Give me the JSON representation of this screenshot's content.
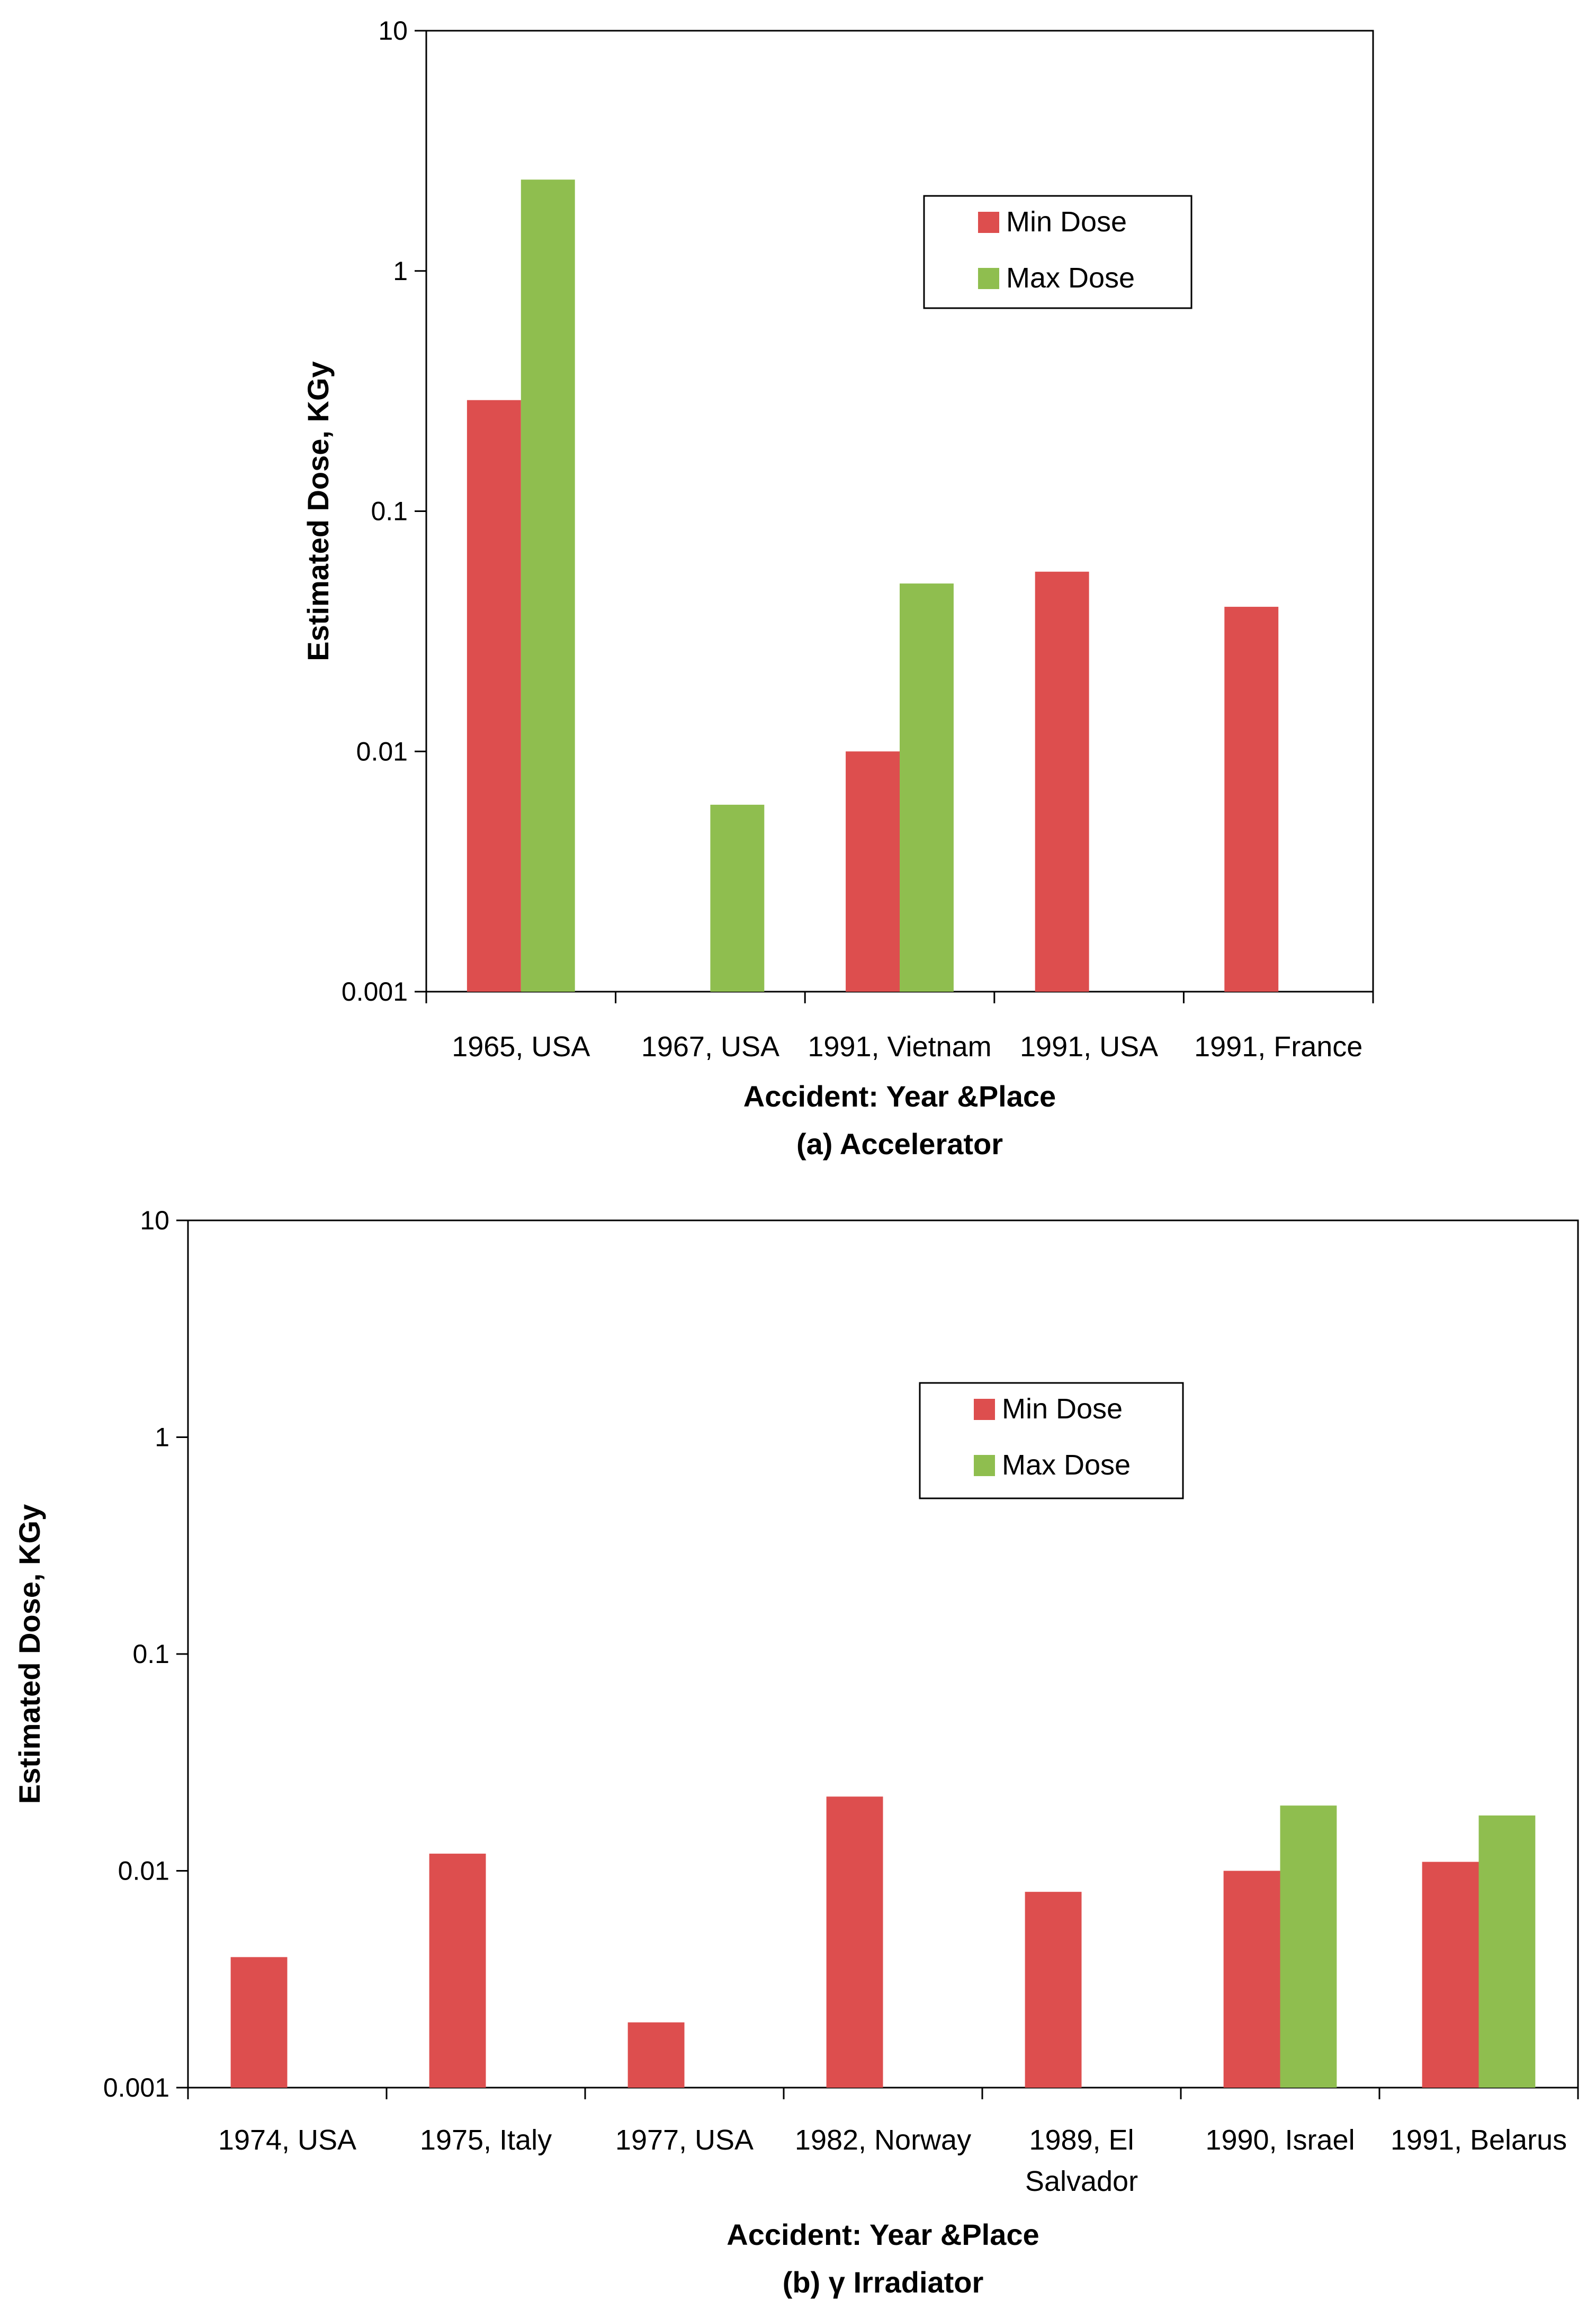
{
  "colors": {
    "min": "#dd4e4e",
    "max": "#8fbe4f",
    "axis": "#000000"
  },
  "chart_data": [
    {
      "type": "bar",
      "scale": "log",
      "ylim": [
        0.001,
        10
      ],
      "yticks": [
        "10",
        "1",
        "0.1",
        "0.01",
        "0.001"
      ],
      "ylabel": "Estimated Dose, KGy",
      "xlabel": "Accident: Year &Place",
      "caption": "(a) Accelerator",
      "legend": {
        "position": "top-right",
        "entries": [
          "Min Dose",
          "Max Dose"
        ]
      },
      "categories": [
        [
          "1965, USA"
        ],
        [
          "1967, USA"
        ],
        [
          "1991, Vietnam"
        ],
        [
          "1991, USA"
        ],
        [
          "1991, France"
        ]
      ],
      "series": [
        {
          "name": "Min Dose",
          "values": [
            0.29,
            null,
            0.01,
            0.056,
            0.04
          ]
        },
        {
          "name": "Max Dose",
          "values": [
            2.4,
            0.006,
            0.05,
            null,
            null
          ]
        }
      ]
    },
    {
      "type": "bar",
      "scale": "log",
      "ylim": [
        0.001,
        10
      ],
      "yticks": [
        "10",
        "1",
        "0.1",
        "0.01",
        "0.001"
      ],
      "ylabel": "Estimated Dose, KGy",
      "xlabel": "Accident: Year &Place",
      "caption": "(b) γ Irradiator",
      "legend": {
        "position": "top-right",
        "entries": [
          "Min Dose",
          "Max Dose"
        ]
      },
      "categories": [
        [
          "1974, USA"
        ],
        [
          "1975, Italy"
        ],
        [
          "1977, USA"
        ],
        [
          "1982, Norway"
        ],
        [
          "1989, El",
          "Salvador"
        ],
        [
          "1990, Israel"
        ],
        [
          "1991, Belarus"
        ]
      ],
      "series": [
        {
          "name": "Min Dose",
          "values": [
            0.004,
            0.012,
            0.002,
            0.022,
            0.008,
            0.01,
            0.011
          ]
        },
        {
          "name": "Max Dose",
          "values": [
            null,
            null,
            null,
            null,
            null,
            0.02,
            0.018
          ]
        }
      ]
    }
  ]
}
